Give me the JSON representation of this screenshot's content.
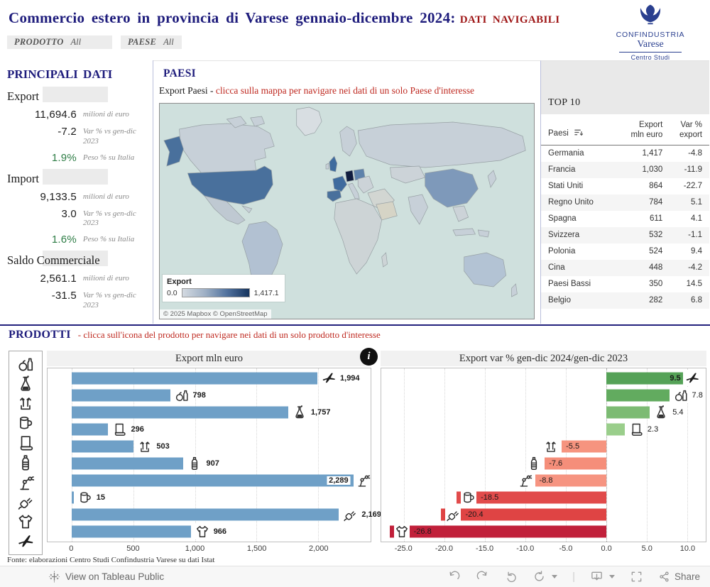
{
  "header": {
    "title": "Commercio estero in provincia di Varese gennaio-dicembre 2024:",
    "badge": "DATI NAVIGABILI"
  },
  "logo": {
    "org": "CONFINDUSTRIA",
    "place": "Varese",
    "unit": "Centro Studi"
  },
  "filters": {
    "f1_label": "PRODOTTO",
    "f1_value": "All",
    "f2_label": "PAESE",
    "f2_value": "All"
  },
  "principali": {
    "title": "PRINCIPALI DATI",
    "groups": [
      {
        "label": "Export",
        "stats": [
          {
            "value": "11,694.6",
            "desc": "milioni di euro",
            "tone": "dark"
          },
          {
            "value": "-7.2",
            "desc": "Var % vs gen-dic 2023",
            "tone": "dark"
          },
          {
            "value": "1.9%",
            "desc": "Peso % su Italia",
            "tone": "green"
          }
        ]
      },
      {
        "label": "Import",
        "stats": [
          {
            "value": "9,133.5",
            "desc": "milioni di euro",
            "tone": "dark"
          },
          {
            "value": "3.0",
            "desc": "Var % vs gen-dic 2023",
            "tone": "dark"
          },
          {
            "value": "1.6%",
            "desc": "Peso % su Italia",
            "tone": "green"
          }
        ]
      },
      {
        "label": "Saldo Commerciale",
        "stats": [
          {
            "value": "2,561.1",
            "desc": "milioni di euro",
            "tone": "dark"
          },
          {
            "value": "-31.5",
            "desc": "Var % vs gen-dic 2023",
            "tone": "dark"
          }
        ]
      }
    ]
  },
  "paesi": {
    "title": "PAESI",
    "subtitle_plain": "Export Paesi - ",
    "subtitle_red": "clicca sulla mappa per navigare nei dati di un solo Paese d'interesse",
    "legend": {
      "title": "Export",
      "min": "0.0",
      "max": "1,417.1"
    },
    "attribution": "© 2025 Mapbox © OpenStreetMap"
  },
  "top10": {
    "title": "TOP 10",
    "columns": [
      "Paesi",
      "Export\nmln euro",
      "Var %\nexport"
    ],
    "rows": [
      [
        "Germania",
        "1,417",
        "-4.8"
      ],
      [
        "Francia",
        "1,030",
        "-11.9"
      ],
      [
        "Stati Uniti",
        "864",
        "-22.7"
      ],
      [
        "Regno Unito",
        "784",
        "5.1"
      ],
      [
        "Spagna",
        "611",
        "4.1"
      ],
      [
        "Svizzera",
        "532",
        "-1.1"
      ],
      [
        "Polonia",
        "524",
        "9.4"
      ],
      [
        "Cina",
        "448",
        "-4.2"
      ],
      [
        "Paesi Bassi",
        "350",
        "14.5"
      ],
      [
        "Belgio",
        "282",
        "6.8"
      ]
    ]
  },
  "prodotti": {
    "title": "PRODOTTI",
    "subtitle": "- clicca sull'icona del prodotto per navigare nei dati di un solo prodotto d'interesse",
    "sidebar_icons": [
      "food",
      "flask",
      "arrows",
      "mug",
      "paper",
      "bottle",
      "robot",
      "plug",
      "sweater",
      "airplane"
    ]
  },
  "chart_data": [
    {
      "type": "bar",
      "orientation": "horizontal",
      "title": "Export mln euro",
      "categories": [
        "airplane",
        "food",
        "flask",
        "paper",
        "arrows",
        "bottle",
        "robot",
        "mug",
        "plug",
        "sweater"
      ],
      "values": [
        1994,
        798,
        1757,
        296,
        503,
        907,
        2289,
        15,
        2169,
        966
      ],
      "value_labels": [
        "1,994",
        "798",
        "1,757",
        "296",
        "503",
        "907",
        "2,289",
        "15",
        "2,169",
        "966"
      ],
      "bar_color": "#6fa0c7",
      "xticks": [
        0,
        500,
        1000,
        1500,
        2000
      ],
      "xtick_labels": [
        "0",
        "500",
        "1,000",
        "1,500",
        "2,000"
      ],
      "xlim": [
        0,
        2400
      ],
      "grid": true,
      "legend": "none"
    },
    {
      "type": "bar",
      "orientation": "horizontal",
      "title": "Export var % gen-dic 2024/gen-dic 2023",
      "categories": [
        "airplane",
        "food",
        "flask",
        "paper",
        "arrows",
        "bottle",
        "robot",
        "mug",
        "plug",
        "sweater"
      ],
      "values": [
        9.5,
        7.8,
        5.4,
        2.3,
        -5.5,
        -7.6,
        -8.8,
        -18.5,
        -20.4,
        -26.8
      ],
      "value_labels": [
        "9.5",
        "7.8",
        "5.4",
        "2.3",
        "-5.5",
        "-7.6",
        "-8.8",
        "-18.5",
        "-20.4",
        "-26.8"
      ],
      "bar_colors": [
        "#55a257",
        "#62ab5f",
        "#7cbb73",
        "#9ace8b",
        "#f6947f",
        "#f58e7a",
        "#f69481",
        "#e14b4b",
        "#df4444",
        "#c1203a"
      ],
      "xticks": [
        -25,
        -20,
        -15,
        -10,
        -5,
        0,
        5,
        10
      ],
      "xtick_labels": [
        "-25.0",
        "-20.0",
        "-15.0",
        "-10.0",
        "-5.0",
        "0.0",
        "5.0",
        "10.0"
      ],
      "xlim": [
        -27.5,
        12
      ],
      "grid": true,
      "legend": "none"
    }
  ],
  "fonte": "Fonte: elaborazioni Centro Studi Confindustria Varese su dati Istat",
  "footer": {
    "view_label": "View on Tableau Public",
    "share_label": "Share"
  }
}
